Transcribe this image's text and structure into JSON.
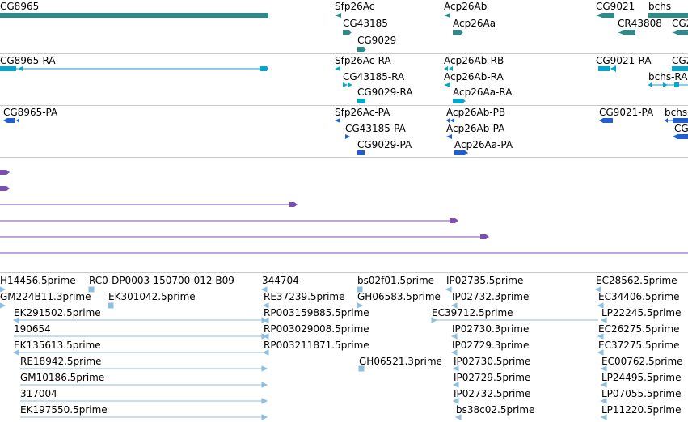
{
  "colors": {
    "gene": "#2e8b8b",
    "transcript": "#0aa6c8",
    "protein": "#1f5fcf",
    "alignment": "#7a4fb0",
    "est": "#8cbfe0",
    "divider": "#c8c8c8"
  },
  "tracks": {
    "genes": {
      "labels": [
        "CG8965",
        "Sfp26Ac",
        "Acp26Ab",
        "CG9021",
        "bchs",
        "CG43185",
        "Acp26Aa",
        "CR43808",
        "CG2",
        "CG9029"
      ]
    },
    "transcripts": {
      "labels": [
        "CG8965-RA",
        "Sfp26Ac-RA",
        "Acp26Ab-RB",
        "CG9021-RA",
        "CG2",
        "CG43185-RA",
        "Acp26Ab-RA",
        "bchs-RA",
        "CG9029-RA",
        "Acp26Aa-RA"
      ]
    },
    "proteins": {
      "labels": [
        "CG8965-PA",
        "Sfp26Ac-PA",
        "Acp26Ab-PB",
        "CG9021-PA",
        "bchs-",
        "CG43185-PA",
        "Acp26Ab-PA",
        "CG",
        "CG9029-PA",
        "Acp26Aa-PA"
      ]
    },
    "ests": {
      "labels": [
        "H14456.5prime",
        "RC0-DP0003-150700-012-B09",
        "344704",
        "bs02f01.5prime",
        "IP02735.5prime",
        "EC28562.5prime",
        "GM224B11.3prime",
        "EK301042.5prime",
        "RE37239.5prime",
        "GH06583.5prime",
        "IP02732.3prime",
        "EC34406.5prime",
        "EK291502.5prime",
        "RP003159885.5prime",
        "EC39712.5prime",
        "LP22245.5prime",
        "190654",
        "RP003029008.5prime",
        "IP02730.3prime",
        "EC26275.5prime",
        "EK135613.5prime",
        "RP003211871.5prime",
        "IP02729.3prime",
        "EC37275.5prime",
        "RE18942.5prime",
        "GH06521.3prime",
        "IP02730.5prime",
        "EC00762.5prime",
        "GM10186.5prime",
        "IP02729.5prime",
        "LP24495.5prime",
        "317004",
        "IP02732.5prime",
        "LP07055.5prime",
        "EK197550.5prime",
        "bs38c02.5prime",
        "LP11220.5prime"
      ]
    }
  }
}
